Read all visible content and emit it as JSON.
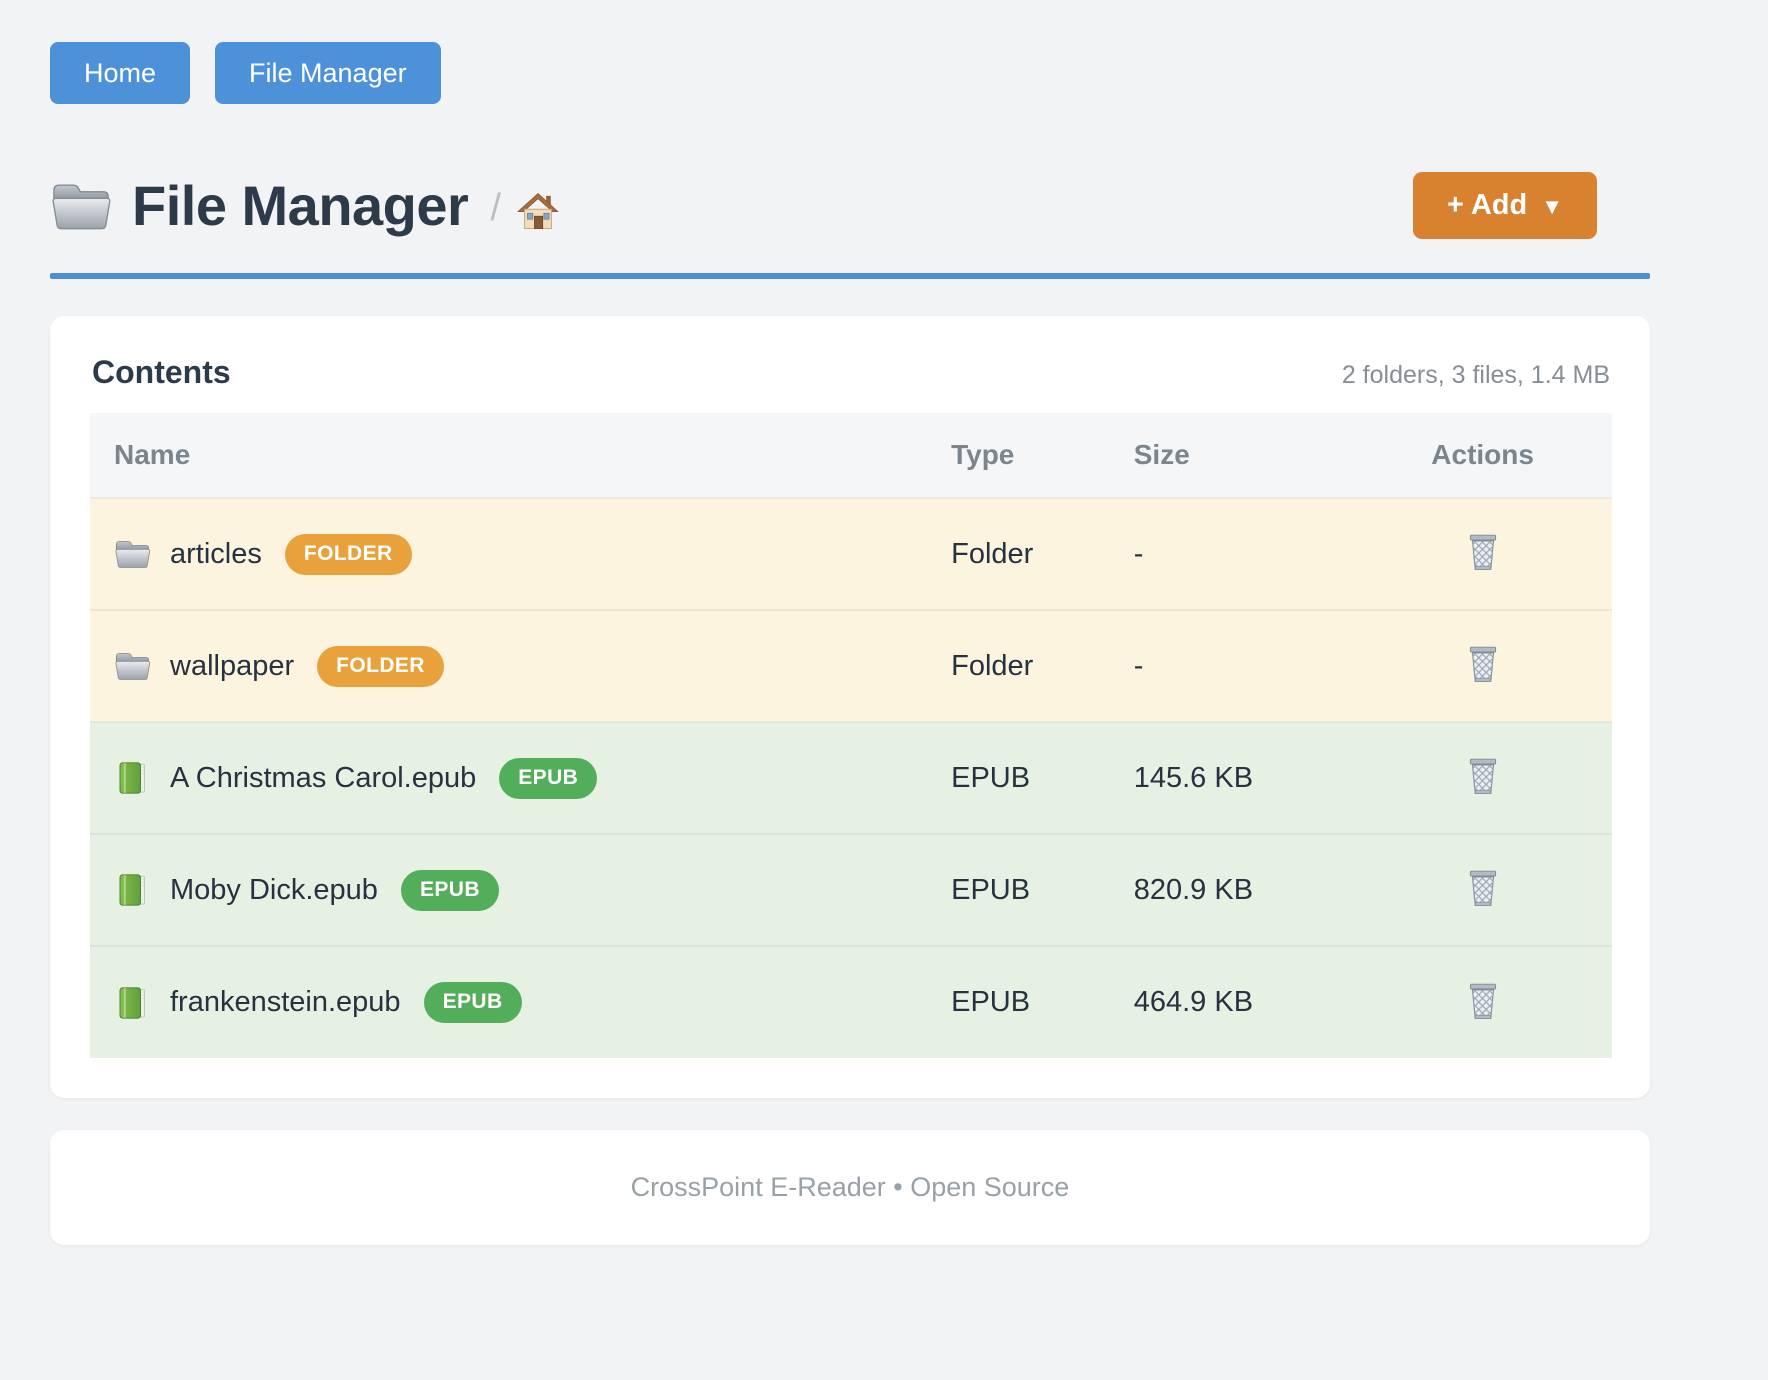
{
  "nav": {
    "buttons": [
      {
        "label": "Home"
      },
      {
        "label": "File Manager"
      }
    ]
  },
  "header": {
    "title": "File Manager",
    "title_icon": "folder-icon",
    "breadcrumb_separator": "/",
    "breadcrumb_home_icon": "home-icon",
    "add_button_label": "+ Add",
    "add_caret": "▼"
  },
  "contents": {
    "heading": "Contents",
    "summary": "2 folders, 3 files, 1.4 MB",
    "table": {
      "columns": [
        "Name",
        "Type",
        "Size",
        "Actions"
      ],
      "action_icon": "trash-icon",
      "rows": [
        {
          "name": "articles",
          "badge": "FOLDER",
          "type": "Folder",
          "size": "-",
          "kind": "folder",
          "icon": "folder-icon"
        },
        {
          "name": "wallpaper",
          "badge": "FOLDER",
          "type": "Folder",
          "size": "-",
          "kind": "folder",
          "icon": "folder-icon"
        },
        {
          "name": "A Christmas Carol.epub",
          "badge": "EPUB",
          "type": "EPUB",
          "size": "145.6 KB",
          "kind": "epub",
          "icon": "book-icon"
        },
        {
          "name": "Moby Dick.epub",
          "badge": "EPUB",
          "type": "EPUB",
          "size": "820.9 KB",
          "kind": "epub",
          "icon": "book-icon"
        },
        {
          "name": "frankenstein.epub",
          "badge": "EPUB",
          "type": "EPUB",
          "size": "464.9 KB",
          "kind": "epub",
          "icon": "book-icon"
        }
      ]
    }
  },
  "footer": {
    "text": "CrossPoint E-Reader • Open Source"
  },
  "colors": {
    "accent_blue": "#4d92d8",
    "accent_orange": "#d8822f",
    "badge_folder": "#e9a23b",
    "badge_epub": "#53ae5c",
    "row_folder_bg": "#fcf4df",
    "row_epub_bg": "#e6f1e4",
    "divider_blue": "#4a90d5",
    "page_bg": "#f2f3f4"
  }
}
